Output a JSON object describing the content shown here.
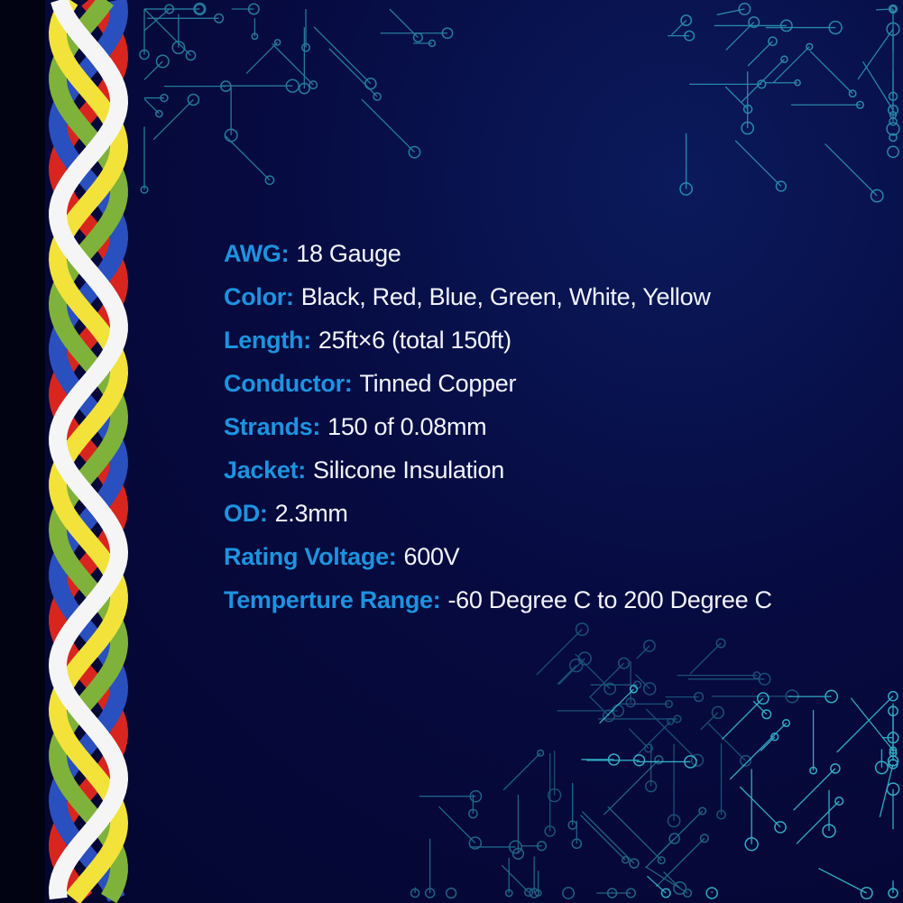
{
  "specs": [
    {
      "label": "AWG:",
      "value": "18 Gauge"
    },
    {
      "label": "Color:",
      "value": "Black, Red, Blue, Green, White, Yellow"
    },
    {
      "label": "Length:",
      "value": "25ft×6 (total 150ft)"
    },
    {
      "label": "Conductor:",
      "value": "Tinned Copper"
    },
    {
      "label": "Strands:",
      "value": "150 of 0.08mm"
    },
    {
      "label": "Jacket:",
      "value": "Silicone Insulation"
    },
    {
      "label": "OD:",
      "value": "2.3mm"
    },
    {
      "label": "Rating Voltage:",
      "value": "600V"
    },
    {
      "label": "Temperture Range:",
      "value": "-60 Degree C to 200 Degree C"
    }
  ],
  "colors": {
    "background": "#060a3f",
    "label": "#1d93e0",
    "value": "#f2f4ff",
    "circuit": "#3fd3e6",
    "wires": [
      "#d8261f",
      "#2a4fbf",
      "#7fb23a",
      "#f2e23a",
      "#f5f5f5"
    ]
  }
}
